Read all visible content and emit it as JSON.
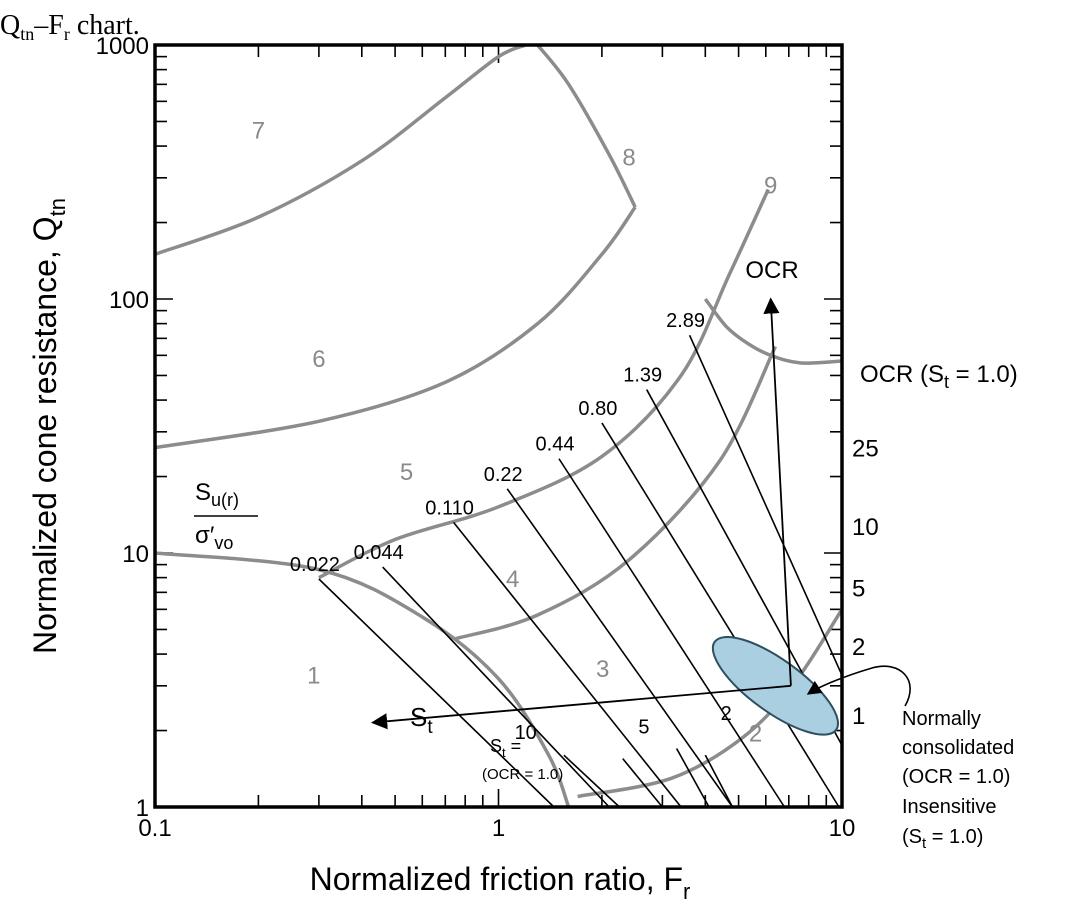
{
  "chart_data": {
    "type": "line",
    "title_fragment": "Q",
    "title_fragment_sub1": "tn",
    "title_fragment_mid": "–F",
    "title_fragment_sub2": "r",
    "title_fragment_end": " chart.",
    "xlabel": "Normalized friction ratio, F",
    "xlabel_sub": "r",
    "ylabel": "Normalized cone resistance, Q",
    "ylabel_sub": "tn",
    "x_scale": "log",
    "y_scale": "log",
    "xlim": [
      0.1,
      10
    ],
    "ylim": [
      1,
      1000
    ],
    "x_ticks": [
      {
        "value": 0.1,
        "label": "0.1"
      },
      {
        "value": 1,
        "label": "1"
      },
      {
        "value": 10,
        "label": "10"
      }
    ],
    "y_ticks": [
      {
        "value": 1,
        "label": "1"
      },
      {
        "value": 10,
        "label": "10"
      },
      {
        "value": 100,
        "label": "100"
      },
      {
        "value": 1000,
        "label": "1000"
      }
    ],
    "zones": [
      {
        "label": "1",
        "x": 0.29,
        "y": 3.3
      },
      {
        "label": "2",
        "x": 5.6,
        "y": 1.95
      },
      {
        "label": "3",
        "x": 2.01,
        "y": 3.5
      },
      {
        "label": "4",
        "x": 1.1,
        "y": 7.9
      },
      {
        "label": "5",
        "x": 0.54,
        "y": 20.8
      },
      {
        "label": "6",
        "x": 0.3,
        "y": 58
      },
      {
        "label": "7",
        "x": 0.2,
        "y": 460
      },
      {
        "label": "8",
        "x": 2.4,
        "y": 360
      },
      {
        "label": "9",
        "x": 6.2,
        "y": 280
      }
    ],
    "boundaries": [
      {
        "name": "boundary-1-2",
        "x": [
          0.1,
          0.3,
          0.6,
          1.0,
          1.4,
          1.6
        ],
        "y": [
          10,
          8.6,
          5.6,
          3.2,
          1.6,
          1
        ]
      },
      {
        "name": "boundary-2-3",
        "x": [
          1.7,
          3.2,
          5.2,
          7.3,
          10
        ],
        "y": [
          1.1,
          1.3,
          1.9,
          3.1,
          6.0
        ]
      },
      {
        "name": "boundary-3-4",
        "x": [
          0.75,
          1.3,
          2.4,
          4.4,
          6.4
        ],
        "y": [
          4.6,
          5.7,
          9.4,
          23,
          65
        ]
      },
      {
        "name": "boundary-4-5",
        "x": [
          0.3,
          0.5,
          1.0,
          2.0,
          3.4,
          4.7,
          6.1
        ],
        "y": [
          8.0,
          11.3,
          15.2,
          24,
          50,
          125,
          270
        ]
      },
      {
        "name": "boundary-5-6",
        "x": [
          0.1,
          0.3,
          0.7,
          1.3,
          2.0,
          2.5
        ],
        "y": [
          26,
          33,
          47,
          80,
          150,
          230
        ]
      },
      {
        "name": "boundary-6-7",
        "x": [
          0.1,
          0.2,
          0.4,
          0.7,
          1.0,
          1.2
        ],
        "y": [
          150,
          210,
          350,
          620,
          900,
          1000
        ]
      },
      {
        "name": "boundary-7-8",
        "x": [
          1.3,
          1.6,
          2.1,
          2.5
        ],
        "y": [
          1000,
          700,
          370,
          230
        ]
      },
      {
        "name": "boundary-8-9",
        "x": [
          4.0,
          4.6,
          5.3,
          6.2,
          7.6,
          10
        ],
        "y": [
          100,
          78,
          67,
          60,
          56,
          57
        ]
      }
    ],
    "su_ratio_header": {
      "line1": "S",
      "line1_sub": "u(r)",
      "line2": "σ′",
      "line2_sub": "vo"
    },
    "su_ratio_contours": [
      {
        "label": "0.022",
        "x": [
          0.3,
          1.45
        ],
        "y": [
          7.9,
          1
        ]
      },
      {
        "label": "0.044",
        "x": [
          0.46,
          2.1
        ],
        "y": [
          8.8,
          1
        ]
      },
      {
        "label": "0.110",
        "x": [
          0.74,
          3.4
        ],
        "y": [
          13.2,
          1
        ]
      },
      {
        "label": "0.22",
        "x": [
          1.06,
          4.8
        ],
        "y": [
          17.9,
          1
        ]
      },
      {
        "label": "0.44",
        "x": [
          1.5,
          6.8
        ],
        "y": [
          23.5,
          1
        ]
      },
      {
        "label": "0.80",
        "x": [
          2.0,
          9.8
        ],
        "y": [
          32.5,
          1
        ]
      },
      {
        "label": "1.39",
        "x": [
          2.7,
          10
        ],
        "y": [
          44,
          1.75
        ]
      },
      {
        "label": "2.89",
        "x": [
          3.6,
          10
        ],
        "y": [
          72,
          3.3
        ]
      }
    ],
    "ocr_scale": {
      "title": "OCR (S",
      "title_sub": "t",
      "title_end": " = 1.0)",
      "labels": [
        {
          "label": "25",
          "y": 26
        },
        {
          "label": "10",
          "y": 12.8
        },
        {
          "label": "5",
          "y": 7.3
        },
        {
          "label": "2",
          "y": 4.3
        },
        {
          "label": "1",
          "y": 2.3
        }
      ]
    },
    "st_contours": [
      {
        "label": "10",
        "x": 1.2,
        "y": 1.85
      },
      {
        "label": "5",
        "x": 2.65,
        "y": 1.95
      },
      {
        "label": "2",
        "x": 4.6,
        "y": 2.2
      }
    ],
    "st_lines": [
      {
        "x": [
          1.55,
          2.25
        ],
        "y": [
          1.6,
          1
        ]
      },
      {
        "x": [
          2.3,
          3.0
        ],
        "y": [
          1.55,
          1
        ]
      },
      {
        "x": [
          3.3,
          4.1
        ],
        "y": [
          1.7,
          1
        ]
      },
      {
        "x": [
          4.0,
          4.8
        ],
        "y": [
          1.6,
          1
        ]
      }
    ],
    "st_label_prefix": {
      "text": "S",
      "sub": "t",
      "after": " =",
      "ocr": "(OCR = 1.0)"
    },
    "arrows": [
      {
        "name": "ocr-arrow",
        "label": "OCR",
        "from": [
          7.1,
          3.0
        ],
        "to": [
          6.2,
          100
        ]
      },
      {
        "name": "st-arrow",
        "label": "S",
        "label_sub": "t",
        "from": [
          7.1,
          3.0
        ],
        "to": [
          0.43,
          2.15
        ]
      }
    ],
    "highlight": {
      "name": "nc-insensitive-zone",
      "center": [
        6.4,
        3.0
      ],
      "color": "#a9cfe0",
      "edge": "#2f4f60",
      "annotation": [
        "Normally",
        "consolidated",
        "(OCR = 1.0)",
        "Insensitive",
        "(S",
        "t",
        " = 1.0)"
      ]
    },
    "colors": {
      "boundary": "#8c8c8c",
      "contour": "#000000",
      "zone_label": "#8a8a8a"
    }
  }
}
